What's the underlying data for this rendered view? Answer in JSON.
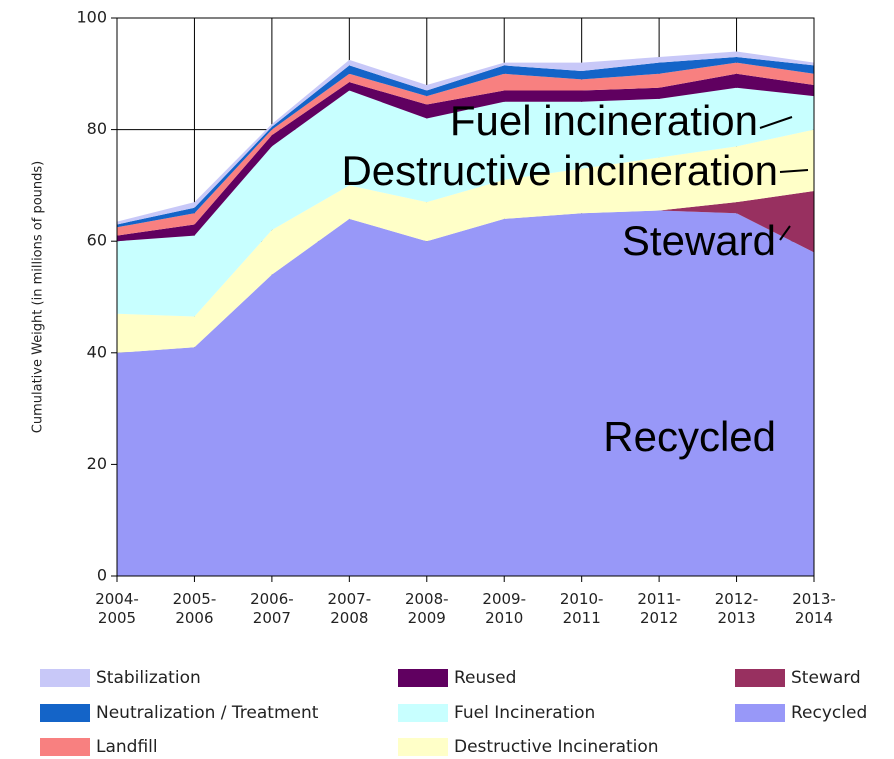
{
  "chart_data": {
    "type": "stacked_area",
    "y_label": "Cumulative Weight (in millions of pounds)",
    "categories": [
      "2004-2005",
      "2005-2006",
      "2006-2007",
      "2007-2008",
      "2008-2009",
      "2009-2010",
      "2010-2011",
      "2011-2012",
      "2012-2013",
      "2013-2014"
    ],
    "series": [
      {
        "name": "Stabilization",
        "color": "#c8c8f8",
        "values": [
          0.5,
          1,
          0.5,
          1,
          1,
          0.5,
          1.5,
          1,
          1,
          0.5
        ]
      },
      {
        "name": "Neutralization / Treatment",
        "color": "#1464c8",
        "values": [
          0.5,
          1,
          0.5,
          1.5,
          1,
          1.5,
          1.5,
          2,
          1,
          1.5
        ]
      },
      {
        "name": "Landfill",
        "color": "#f88080",
        "values": [
          1.5,
          2,
          1,
          1.5,
          1.5,
          3,
          2,
          2.5,
          2,
          2
        ]
      },
      {
        "name": "Reused",
        "color": "#600060",
        "values": [
          1,
          2,
          2,
          1.5,
          2.5,
          2,
          2,
          2,
          2.5,
          2
        ]
      },
      {
        "name": "Fuel Incineration",
        "color": "#c8ffff",
        "values": [
          13,
          14.5,
          15,
          17,
          15,
          14,
          12,
          10.5,
          10.5,
          6
        ]
      },
      {
        "name": "Destructive Incineration",
        "color": "#ffffc8",
        "values": [
          7,
          5.5,
          8,
          6,
          7,
          7,
          8,
          9.5,
          10,
          11
        ]
      },
      {
        "name": "Steward",
        "color": "#983060",
        "values": [
          0,
          0,
          0,
          0,
          0,
          0,
          0,
          0,
          2,
          11
        ]
      },
      {
        "name": "Recycled",
        "color": "#9898f8",
        "values": [
          40,
          41,
          54,
          64,
          60,
          64,
          65,
          65.5,
          65,
          58
        ]
      }
    ],
    "ylim": [
      0,
      100
    ],
    "yticks": [
      0,
      20,
      40,
      60,
      80,
      100
    ],
    "grid": true,
    "annotations": [
      "Fuel incineration",
      "Destructive incineration",
      "Steward",
      "Recycled"
    ]
  }
}
